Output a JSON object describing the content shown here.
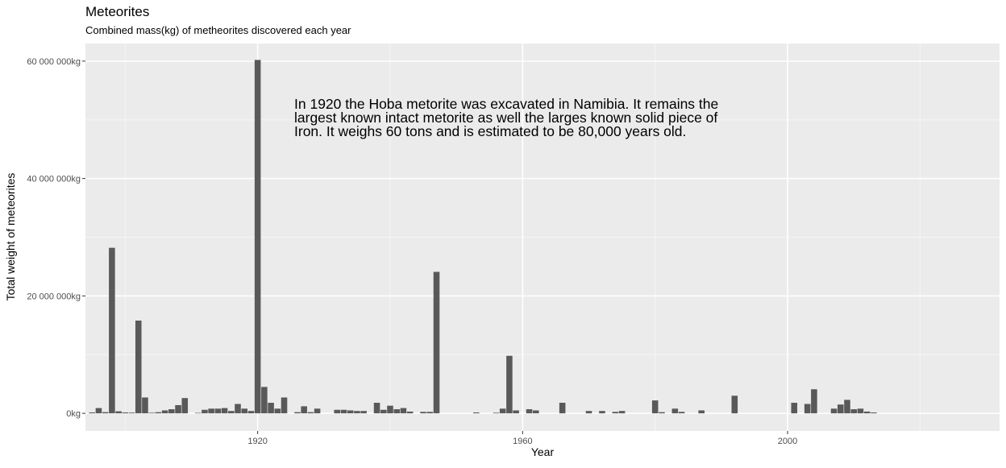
{
  "chart_data": {
    "type": "bar",
    "title": "Meteorites",
    "subtitle": "Combined mass(kg) of metheorites discovered each year",
    "xlabel": "Year",
    "ylabel": "Total weight of meteorites",
    "xlim": [
      1894,
      2032
    ],
    "ylim": [
      -3000000,
      63000000
    ],
    "x_ticks": [
      1920,
      1960,
      2000
    ],
    "x_tick_labels": [
      "1920",
      "1960",
      "2000"
    ],
    "y_ticks": [
      0,
      20000000,
      40000000,
      60000000
    ],
    "y_tick_labels": [
      "0kg",
      "20 000 000kg",
      "40 000 000kg",
      "60 000 000kg"
    ],
    "grid": true,
    "panel_background": "#ebebeb",
    "bar_color": "#595959",
    "annotation": [
      "In 1920 the Hoba metorite was excavated in Namibia. It remains the",
      "largest known intact metorite as well the larges known solid piece of",
      "Iron. It weighs 60 tons and is estimated to be 80,000 years old."
    ],
    "bars": [
      {
        "year": 1895,
        "value": 150000
      },
      {
        "year": 1896,
        "value": 900000
      },
      {
        "year": 1897,
        "value": 200000
      },
      {
        "year": 1898,
        "value": 28200000
      },
      {
        "year": 1899,
        "value": 350000
      },
      {
        "year": 1900,
        "value": 150000
      },
      {
        "year": 1901,
        "value": 120000
      },
      {
        "year": 1902,
        "value": 15800000
      },
      {
        "year": 1903,
        "value": 2700000
      },
      {
        "year": 1904,
        "value": 100000
      },
      {
        "year": 1905,
        "value": 200000
      },
      {
        "year": 1906,
        "value": 500000
      },
      {
        "year": 1907,
        "value": 700000
      },
      {
        "year": 1908,
        "value": 1400000
      },
      {
        "year": 1909,
        "value": 2600000
      },
      {
        "year": 1911,
        "value": 80000
      },
      {
        "year": 1912,
        "value": 600000
      },
      {
        "year": 1913,
        "value": 800000
      },
      {
        "year": 1914,
        "value": 800000
      },
      {
        "year": 1915,
        "value": 900000
      },
      {
        "year": 1916,
        "value": 400000
      },
      {
        "year": 1917,
        "value": 1600000
      },
      {
        "year": 1918,
        "value": 800000
      },
      {
        "year": 1919,
        "value": 400000
      },
      {
        "year": 1920,
        "value": 60200000
      },
      {
        "year": 1921,
        "value": 4500000
      },
      {
        "year": 1922,
        "value": 1800000
      },
      {
        "year": 1923,
        "value": 800000
      },
      {
        "year": 1924,
        "value": 2700000
      },
      {
        "year": 1926,
        "value": 200000
      },
      {
        "year": 1927,
        "value": 1200000
      },
      {
        "year": 1928,
        "value": 200000
      },
      {
        "year": 1929,
        "value": 800000
      },
      {
        "year": 1932,
        "value": 600000
      },
      {
        "year": 1933,
        "value": 600000
      },
      {
        "year": 1934,
        "value": 500000
      },
      {
        "year": 1935,
        "value": 400000
      },
      {
        "year": 1936,
        "value": 400000
      },
      {
        "year": 1938,
        "value": 1800000
      },
      {
        "year": 1939,
        "value": 600000
      },
      {
        "year": 1940,
        "value": 1300000
      },
      {
        "year": 1941,
        "value": 700000
      },
      {
        "year": 1942,
        "value": 900000
      },
      {
        "year": 1943,
        "value": 300000
      },
      {
        "year": 1945,
        "value": 250000
      },
      {
        "year": 1946,
        "value": 250000
      },
      {
        "year": 1947,
        "value": 24100000
      },
      {
        "year": 1953,
        "value": 150000
      },
      {
        "year": 1956,
        "value": 100000
      },
      {
        "year": 1957,
        "value": 800000
      },
      {
        "year": 1958,
        "value": 9800000
      },
      {
        "year": 1959,
        "value": 500000
      },
      {
        "year": 1961,
        "value": 700000
      },
      {
        "year": 1962,
        "value": 500000
      },
      {
        "year": 1966,
        "value": 1800000
      },
      {
        "year": 1970,
        "value": 400000
      },
      {
        "year": 1972,
        "value": 400000
      },
      {
        "year": 1974,
        "value": 250000
      },
      {
        "year": 1975,
        "value": 400000
      },
      {
        "year": 1980,
        "value": 2200000
      },
      {
        "year": 1981,
        "value": 200000
      },
      {
        "year": 1983,
        "value": 800000
      },
      {
        "year": 1984,
        "value": 250000
      },
      {
        "year": 1987,
        "value": 500000
      },
      {
        "year": 1992,
        "value": 3000000
      },
      {
        "year": 2001,
        "value": 1800000
      },
      {
        "year": 2003,
        "value": 1600000
      },
      {
        "year": 2004,
        "value": 4100000
      },
      {
        "year": 2007,
        "value": 800000
      },
      {
        "year": 2008,
        "value": 1500000
      },
      {
        "year": 2009,
        "value": 2300000
      },
      {
        "year": 2010,
        "value": 700000
      },
      {
        "year": 2011,
        "value": 800000
      },
      {
        "year": 2012,
        "value": 300000
      },
      {
        "year": 2013,
        "value": 150000
      }
    ]
  }
}
